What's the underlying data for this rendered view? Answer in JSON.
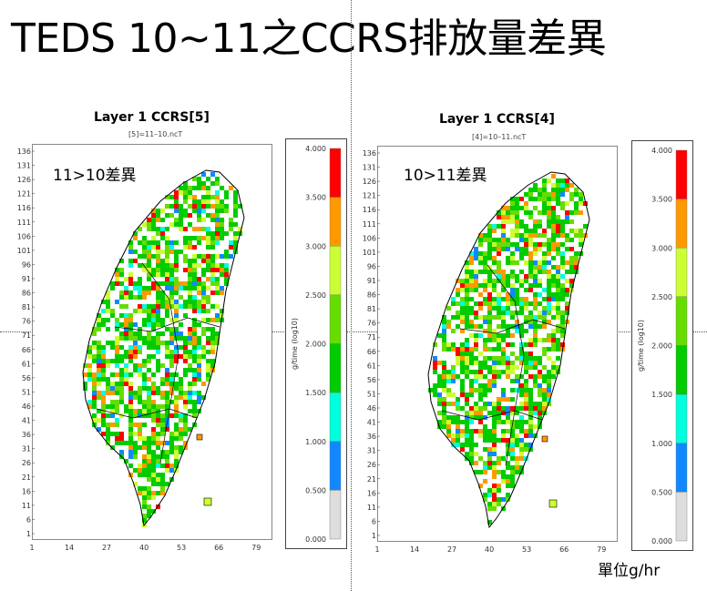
{
  "page_title": "TEDS 10~11之CCRS排放量差異",
  "unit_label": "單位g/hr",
  "chart_data": [
    {
      "type": "heatmap",
      "title": "Layer 1 CCRS[5]",
      "subtitle": "[5]=11–10.ncT",
      "annotation": "11>10差異",
      "x_ticks": [
        "1",
        "14",
        "27",
        "40",
        "53",
        "66",
        "79"
      ],
      "y_ticks": [
        "136",
        "131",
        "126",
        "121",
        "116",
        "111",
        "106",
        "101",
        "96",
        "91",
        "86",
        "81",
        "76",
        "71",
        "66",
        "61",
        "56",
        "51",
        "46",
        "41",
        "36",
        "31",
        "26",
        "21",
        "16",
        "11",
        "6",
        "1"
      ],
      "xlim": [
        1,
        84
      ],
      "ylim": [
        1,
        137
      ],
      "colorbar": {
        "label": "g/time (log10)",
        "ticks": [
          "4.000",
          "3.500",
          "3.000",
          "2.500",
          "2.000",
          "1.500",
          "1.000",
          "0.500",
          "0.000"
        ],
        "colors": [
          "#ff0000",
          "#ff9900",
          "#ccff33",
          "#66dd00",
          "#00cc00",
          "#00ffdd",
          "#1188ff",
          "#dddddd"
        ]
      }
    },
    {
      "type": "heatmap",
      "title": "Layer 1 CCRS[4]",
      "subtitle": "[4]=10–11.ncT",
      "annotation": "10>11差異",
      "x_ticks": [
        "1",
        "14",
        "27",
        "40",
        "53",
        "66",
        "79"
      ],
      "y_ticks": [
        "136",
        "131",
        "126",
        "121",
        "116",
        "111",
        "106",
        "101",
        "96",
        "91",
        "86",
        "81",
        "76",
        "71",
        "66",
        "61",
        "56",
        "51",
        "46",
        "41",
        "36",
        "31",
        "26",
        "21",
        "16",
        "11",
        "6",
        "1"
      ],
      "xlim": [
        1,
        84
      ],
      "ylim": [
        1,
        137
      ],
      "colorbar": {
        "label": "g/time (log10)",
        "ticks": [
          "4.000",
          "3.500",
          "3.000",
          "2.500",
          "2.000",
          "1.500",
          "1.000",
          "0.500",
          "0.000"
        ],
        "colors": [
          "#ff0000",
          "#ff9900",
          "#ccff33",
          "#66dd00",
          "#00cc00",
          "#00ffdd",
          "#1188ff",
          "#dddddd"
        ]
      }
    }
  ]
}
